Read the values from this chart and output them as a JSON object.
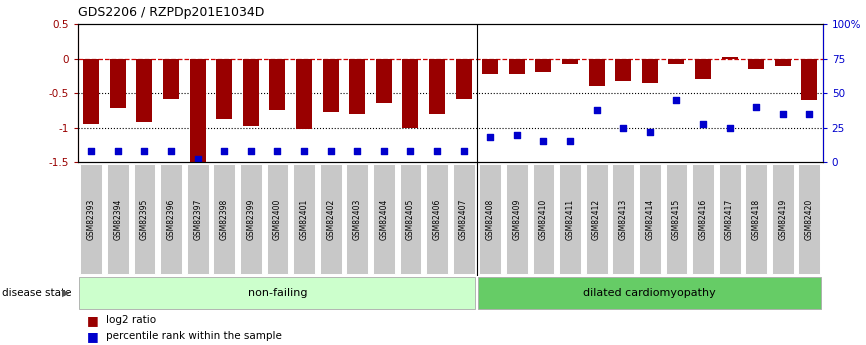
{
  "title": "GDS2206 / RZPDp201E1034D",
  "samples": [
    "GSM82393",
    "GSM82394",
    "GSM82395",
    "GSM82396",
    "GSM82397",
    "GSM82398",
    "GSM82399",
    "GSM82400",
    "GSM82401",
    "GSM82402",
    "GSM82403",
    "GSM82404",
    "GSM82405",
    "GSM82406",
    "GSM82407",
    "GSM82408",
    "GSM82409",
    "GSM82410",
    "GSM82411",
    "GSM82412",
    "GSM82413",
    "GSM82414",
    "GSM82415",
    "GSM82416",
    "GSM82417",
    "GSM82418",
    "GSM82419",
    "GSM82420"
  ],
  "log2_ratio": [
    -0.95,
    -0.72,
    -0.92,
    -0.58,
    -1.52,
    -0.88,
    -0.97,
    -0.75,
    -1.02,
    -0.78,
    -0.8,
    -0.65,
    -1.0,
    -0.8,
    -0.58,
    -0.22,
    -0.22,
    -0.2,
    -0.08,
    -0.4,
    -0.32,
    -0.35,
    -0.08,
    -0.3,
    0.02,
    -0.15,
    -0.1,
    -0.6
  ],
  "percentile": [
    8,
    8,
    8,
    8,
    2,
    8,
    8,
    8,
    8,
    8,
    8,
    8,
    8,
    8,
    8,
    18,
    20,
    15,
    15,
    38,
    25,
    22,
    45,
    28,
    25,
    40,
    35,
    35
  ],
  "non_failing_count": 15,
  "bar_color": "#990000",
  "dot_color": "#0000cc",
  "nf_fill": "#ccffcc",
  "dc_fill": "#66cc66",
  "ylim_left": [
    -1.5,
    0.5
  ],
  "ylim_right": [
    0,
    100
  ],
  "hline_0_color": "#cc0000",
  "hline_dotted_color": "black",
  "disease_state_label": "disease state",
  "nf_label": "non-failing",
  "dc_label": "dilated cardiomyopathy",
  "legend_bar": "log2 ratio",
  "legend_dot": "percentile rank within the sample"
}
